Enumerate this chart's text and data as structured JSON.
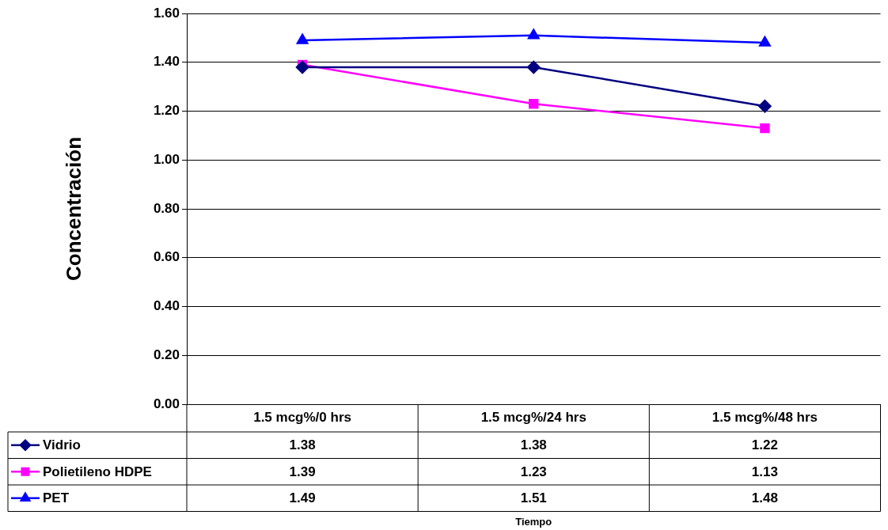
{
  "chart_data": {
    "type": "line",
    "annotations": [
      "Tiempo"
    ],
    "ylabel": "Concentración",
    "categories": [
      "1.5 mcg%/0 hrs",
      "1.5 mcg%/24 hrs",
      "1.5 mcg%/48 hrs"
    ],
    "series": [
      {
        "name": "Vidrio",
        "color": "#000080",
        "marker": "diamond",
        "values": [
          1.38,
          1.38,
          1.22
        ]
      },
      {
        "name": "Polietileno HDPE",
        "color": "#ff00ff",
        "marker": "square",
        "values": [
          1.39,
          1.23,
          1.13
        ]
      },
      {
        "name": "PET",
        "color": "#0000ff",
        "marker": "triangle",
        "values": [
          1.49,
          1.51,
          1.48
        ]
      }
    ],
    "ylim": [
      0,
      1.6
    ],
    "yticks": [
      {
        "value": 0,
        "label": "0.00"
      },
      {
        "value": 0.2,
        "label": "0.20"
      },
      {
        "value": 0.4,
        "label": "0.40"
      },
      {
        "value": 0.6,
        "label": "0.60"
      },
      {
        "value": 0.8,
        "label": "0.80"
      },
      {
        "value": 1,
        "label": "1.00"
      },
      {
        "value": 1.2,
        "label": "1.20"
      },
      {
        "value": 1.4,
        "label": "1.40"
      },
      {
        "value": 1.6,
        "label": "1.60"
      }
    ],
    "grid": "y",
    "legend": "bottom left",
    "data_labels": true
  }
}
